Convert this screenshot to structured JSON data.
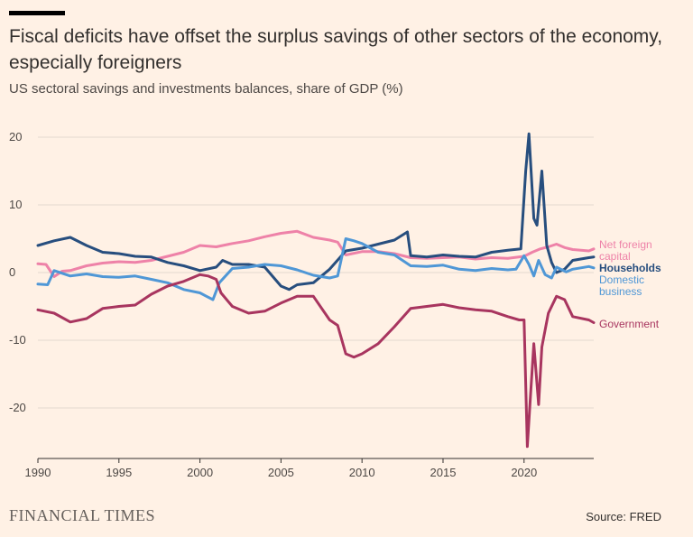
{
  "title": "Fiscal deficits have offset the surplus savings of other sectors of the economy, especially foreigners",
  "subtitle": "US sectoral savings and investments balances, share of GDP (%)",
  "footer": {
    "brand": "FINANCIAL TIMES",
    "source": "Source: FRED"
  },
  "chart_data": {
    "type": "line",
    "title": "Fiscal deficits have offset the surplus savings of other sectors of the economy, especially foreigners",
    "subtitle": "US sectoral savings and investments balances, share of GDP (%)",
    "xlabel": "",
    "ylabel": "",
    "xlim": [
      1990,
      2024.3
    ],
    "ylim": [
      -27,
      22
    ],
    "x_ticks": [
      1990,
      1995,
      2000,
      2005,
      2010,
      2015,
      2020
    ],
    "x_tick_labels": [
      "1990",
      "1995",
      "2000",
      "2005",
      "2010",
      "2015",
      "2020"
    ],
    "y_ticks": [
      20,
      10,
      0,
      -10,
      -20
    ],
    "y_tick_labels": [
      "20",
      "10",
      "0",
      "-10",
      "-20"
    ],
    "grid": true,
    "legend": "direct labels at right end of lines",
    "series": [
      {
        "name": "Net foreign capital",
        "label_lines": [
          "Net foreign",
          "capital"
        ],
        "color": "#ee82a8",
        "points": [
          [
            1990,
            1.3
          ],
          [
            1990.5,
            1.2
          ],
          [
            1991,
            -0.6
          ],
          [
            1991.5,
            0.2
          ],
          [
            1992,
            0.3
          ],
          [
            1993,
            1
          ],
          [
            1994,
            1.4
          ],
          [
            1995,
            1.6
          ],
          [
            1996,
            1.5
          ],
          [
            1997,
            1.8
          ],
          [
            1998,
            2.4
          ],
          [
            1999,
            3
          ],
          [
            2000,
            4
          ],
          [
            2001,
            3.8
          ],
          [
            2002,
            4.3
          ],
          [
            2003,
            4.7
          ],
          [
            2004,
            5.3
          ],
          [
            2005,
            5.8
          ],
          [
            2006,
            6.1
          ],
          [
            2007,
            5.2
          ],
          [
            2008,
            4.8
          ],
          [
            2008.5,
            4.5
          ],
          [
            2009,
            2.6
          ],
          [
            2010,
            3.1
          ],
          [
            2011,
            3.1
          ],
          [
            2012,
            2.8
          ],
          [
            2013,
            2.2
          ],
          [
            2014,
            2.1
          ],
          [
            2015,
            2.2
          ],
          [
            2016,
            2.3
          ],
          [
            2017,
            2.0
          ],
          [
            2018,
            2.2
          ],
          [
            2019,
            2.1
          ],
          [
            2020,
            2.4
          ],
          [
            2020.5,
            3.0
          ],
          [
            2021,
            3.5
          ],
          [
            2021.5,
            3.8
          ],
          [
            2022,
            4.2
          ],
          [
            2022.5,
            3.7
          ],
          [
            2023,
            3.4
          ],
          [
            2024,
            3.2
          ],
          [
            2024.3,
            3.5
          ]
        ]
      },
      {
        "name": "Households",
        "label_lines": [
          "Households"
        ],
        "color": "#274e7e",
        "points": [
          [
            1990,
            4
          ],
          [
            1991,
            4.7
          ],
          [
            1992,
            5.2
          ],
          [
            1993,
            4
          ],
          [
            1994,
            3
          ],
          [
            1995,
            2.8
          ],
          [
            1996,
            2.4
          ],
          [
            1997,
            2.3
          ],
          [
            1998,
            1.5
          ],
          [
            1999,
            1
          ],
          [
            2000,
            0.3
          ],
          [
            2001,
            0.8
          ],
          [
            2001.4,
            1.8
          ],
          [
            2002,
            1.2
          ],
          [
            2003,
            1.2
          ],
          [
            2004,
            0.8
          ],
          [
            2005,
            -2
          ],
          [
            2005.5,
            -2.5
          ],
          [
            2006,
            -1.8
          ],
          [
            2007,
            -1.5
          ],
          [
            2008,
            0.5
          ],
          [
            2009,
            3.2
          ],
          [
            2010,
            3.6
          ],
          [
            2011,
            4.2
          ],
          [
            2012,
            4.8
          ],
          [
            2012.8,
            6
          ],
          [
            2013,
            2.5
          ],
          [
            2014,
            2.3
          ],
          [
            2015,
            2.6
          ],
          [
            2016,
            2.4
          ],
          [
            2017,
            2.3
          ],
          [
            2018,
            3
          ],
          [
            2019,
            3.3
          ],
          [
            2019.8,
            3.5
          ],
          [
            2020.1,
            15
          ],
          [
            2020.3,
            20.5
          ],
          [
            2020.6,
            8
          ],
          [
            2020.8,
            7
          ],
          [
            2021.1,
            15
          ],
          [
            2021.4,
            4
          ],
          [
            2021.7,
            1.5
          ],
          [
            2022,
            0
          ],
          [
            2022.5,
            0.5
          ],
          [
            2023,
            1.8
          ],
          [
            2024,
            2.2
          ],
          [
            2024.3,
            2.3
          ]
        ]
      },
      {
        "name": "Domestic business",
        "label_lines": [
          "Domestic",
          "business"
        ],
        "color": "#4f97d6",
        "points": [
          [
            1990,
            -1.7
          ],
          [
            1990.6,
            -1.8
          ],
          [
            1991,
            0.3
          ],
          [
            1992,
            -0.5
          ],
          [
            1993,
            -0.2
          ],
          [
            1994,
            -0.6
          ],
          [
            1995,
            -0.7
          ],
          [
            1996,
            -0.5
          ],
          [
            1997,
            -1
          ],
          [
            1998,
            -1.5
          ],
          [
            1999,
            -2.5
          ],
          [
            2000,
            -3
          ],
          [
            2000.4,
            -3.5
          ],
          [
            2000.8,
            -4
          ],
          [
            2001.2,
            -1.5
          ],
          [
            2002,
            0.6
          ],
          [
            2003,
            0.8
          ],
          [
            2004,
            1.2
          ],
          [
            2005,
            1
          ],
          [
            2006,
            0.4
          ],
          [
            2007,
            -0.4
          ],
          [
            2008,
            -0.8
          ],
          [
            2008.5,
            -0.5
          ],
          [
            2009,
            5
          ],
          [
            2009.5,
            4.7
          ],
          [
            2010,
            4.3
          ],
          [
            2011,
            3
          ],
          [
            2012,
            2.6
          ],
          [
            2013,
            1
          ],
          [
            2014,
            0.9
          ],
          [
            2015,
            1.1
          ],
          [
            2016,
            0.5
          ],
          [
            2017,
            0.3
          ],
          [
            2018,
            0.6
          ],
          [
            2019,
            0.4
          ],
          [
            2019.5,
            0.5
          ],
          [
            2020,
            2.5
          ],
          [
            2020.3,
            1.2
          ],
          [
            2020.6,
            -0.5
          ],
          [
            2020.9,
            1.8
          ],
          [
            2021.3,
            -0.3
          ],
          [
            2021.7,
            -0.8
          ],
          [
            2022,
            0.8
          ],
          [
            2022.6,
            0.1
          ],
          [
            2023,
            0.5
          ],
          [
            2024,
            0.9
          ],
          [
            2024.3,
            0.7
          ]
        ]
      },
      {
        "name": "Government",
        "label_lines": [
          "Government"
        ],
        "color": "#a8355f",
        "points": [
          [
            1990,
            -5.5
          ],
          [
            1991,
            -6
          ],
          [
            1992,
            -7.3
          ],
          [
            1993,
            -6.8
          ],
          [
            1994,
            -5.3
          ],
          [
            1995,
            -5
          ],
          [
            1996,
            -4.8
          ],
          [
            1997,
            -3.2
          ],
          [
            1998,
            -2
          ],
          [
            1999,
            -1.3
          ],
          [
            2000,
            -0.3
          ],
          [
            2000.5,
            -0.5
          ],
          [
            2001,
            -1
          ],
          [
            2001.3,
            -3
          ],
          [
            2002,
            -5
          ],
          [
            2003,
            -6
          ],
          [
            2004,
            -5.7
          ],
          [
            2005,
            -4.5
          ],
          [
            2006,
            -3.5
          ],
          [
            2007,
            -3.5
          ],
          [
            2008,
            -7
          ],
          [
            2008.5,
            -7.8
          ],
          [
            2009,
            -12
          ],
          [
            2009.5,
            -12.5
          ],
          [
            2010,
            -12
          ],
          [
            2011,
            -10.5
          ],
          [
            2012,
            -8
          ],
          [
            2013,
            -5.3
          ],
          [
            2014,
            -5
          ],
          [
            2015,
            -4.7
          ],
          [
            2016,
            -5.2
          ],
          [
            2017,
            -5.5
          ],
          [
            2018,
            -5.7
          ],
          [
            2019,
            -6.5
          ],
          [
            2019.7,
            -7
          ],
          [
            2020,
            -7
          ],
          [
            2020.2,
            -25.7
          ],
          [
            2020.4,
            -18
          ],
          [
            2020.6,
            -10.5
          ],
          [
            2020.9,
            -19.5
          ],
          [
            2021.1,
            -11
          ],
          [
            2021.5,
            -6
          ],
          [
            2022,
            -3.5
          ],
          [
            2022.5,
            -4
          ],
          [
            2023,
            -6.5
          ],
          [
            2024,
            -7
          ],
          [
            2024.3,
            -7.4
          ]
        ]
      }
    ]
  }
}
